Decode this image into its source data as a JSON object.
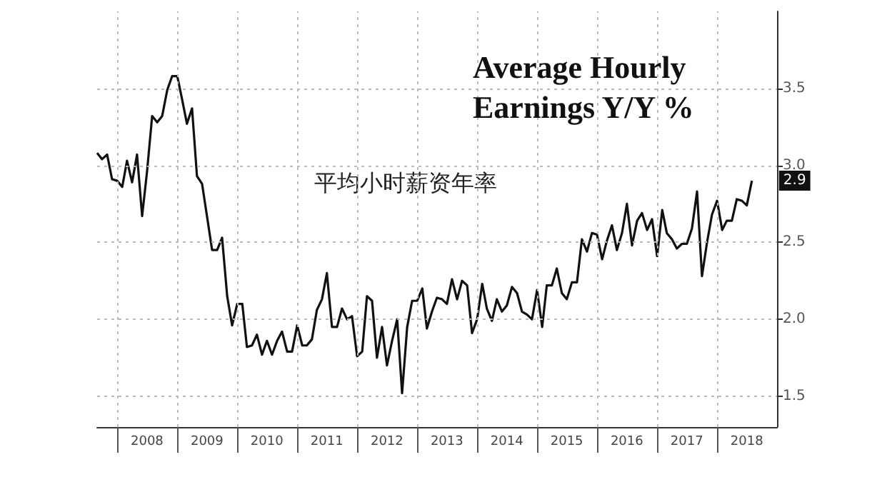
{
  "chart_data": {
    "type": "line",
    "title": "Average Hourly Earnings Y/Y %",
    "x": [
      "2007-09",
      "2007-10",
      "2007-11",
      "2007-12",
      "2008-01",
      "2008-02",
      "2008-03",
      "2008-04",
      "2008-05",
      "2008-06",
      "2008-07",
      "2008-08",
      "2008-09",
      "2008-10",
      "2008-11",
      "2008-12",
      "2009-01",
      "2009-02",
      "2009-03",
      "2009-04",
      "2009-05",
      "2009-06",
      "2009-07",
      "2009-08",
      "2009-09",
      "2009-10",
      "2009-11",
      "2009-12",
      "2010-01",
      "2010-02",
      "2010-03",
      "2010-04",
      "2010-05",
      "2010-06",
      "2010-07",
      "2010-08",
      "2010-09",
      "2010-10",
      "2010-11",
      "2010-12",
      "2011-01",
      "2011-02",
      "2011-03",
      "2011-04",
      "2011-05",
      "2011-06",
      "2011-07",
      "2011-08",
      "2011-09",
      "2011-10",
      "2011-11",
      "2011-12",
      "2012-01",
      "2012-02",
      "2012-03",
      "2012-04",
      "2012-05",
      "2012-06",
      "2012-07",
      "2012-08",
      "2012-09",
      "2012-10",
      "2012-11",
      "2012-12",
      "2013-01",
      "2013-02",
      "2013-03",
      "2013-04",
      "2013-05",
      "2013-06",
      "2013-07",
      "2013-08",
      "2013-09",
      "2013-10",
      "2013-11",
      "2013-12",
      "2014-01",
      "2014-02",
      "2014-03",
      "2014-04",
      "2014-05",
      "2014-06",
      "2014-07",
      "2014-08",
      "2014-09",
      "2014-10",
      "2014-11",
      "2014-12",
      "2015-01",
      "2015-02",
      "2015-03",
      "2015-04",
      "2015-05",
      "2015-06",
      "2015-07",
      "2015-08",
      "2015-09",
      "2015-10",
      "2015-11",
      "2015-12",
      "2016-01",
      "2016-02",
      "2016-03",
      "2016-04",
      "2016-05",
      "2016-06",
      "2016-07",
      "2016-08",
      "2016-09",
      "2016-10",
      "2016-11",
      "2016-12",
      "2017-01",
      "2017-02",
      "2017-03",
      "2017-04",
      "2017-05",
      "2017-06",
      "2017-07",
      "2017-08",
      "2017-09",
      "2017-10",
      "2017-11",
      "2017-12",
      "2018-01",
      "2018-02",
      "2018-03",
      "2018-04",
      "2018-05",
      "2018-06",
      "2018-07",
      "2018-08"
    ],
    "series": [
      {
        "color": "#111111",
        "values": [
          3.08,
          3.04,
          3.07,
          2.91,
          2.9,
          2.86,
          3.03,
          2.89,
          3.07,
          2.67,
          2.96,
          3.32,
          3.28,
          3.32,
          3.49,
          3.58,
          3.58,
          3.42,
          3.27,
          3.37,
          2.93,
          2.88,
          2.67,
          2.45,
          2.45,
          2.53,
          2.15,
          1.96,
          2.1,
          2.1,
          1.82,
          1.83,
          1.9,
          1.77,
          1.86,
          1.77,
          1.86,
          1.92,
          1.79,
          1.79,
          1.96,
          1.83,
          1.83,
          1.87,
          2.06,
          2.13,
          2.3,
          1.95,
          1.95,
          2.07,
          2.0,
          2.02,
          1.76,
          1.79,
          2.15,
          2.12,
          1.75,
          1.95,
          1.7,
          1.86,
          2.0,
          1.52,
          1.95,
          2.12,
          2.12,
          2.2,
          1.94,
          2.05,
          2.14,
          2.13,
          2.1,
          2.26,
          2.13,
          2.25,
          2.22,
          1.91,
          2.0,
          2.23,
          2.07,
          1.99,
          2.13,
          2.05,
          2.09,
          2.21,
          2.17,
          2.05,
          2.03,
          2.0,
          2.19,
          1.95,
          2.22,
          2.22,
          2.33,
          2.17,
          2.13,
          2.24,
          2.24,
          2.52,
          2.44,
          2.56,
          2.55,
          2.39,
          2.51,
          2.61,
          2.45,
          2.56,
          2.75,
          2.48,
          2.64,
          2.69,
          2.58,
          2.65,
          2.41,
          2.71,
          2.56,
          2.52,
          2.46,
          2.49,
          2.49,
          2.59,
          2.83,
          2.28,
          2.5,
          2.68,
          2.77,
          2.58,
          2.64,
          2.64,
          2.78,
          2.77,
          2.74,
          2.9
        ]
      }
    ],
    "xlim": [
      "2007-09",
      "2019-01"
    ],
    "xticks": [
      {
        "value": "2008",
        "label": null
      },
      {
        "value": "2008-07",
        "label": "2008"
      },
      {
        "value": "2009",
        "label": null
      },
      {
        "value": "2009-07",
        "label": "2009"
      },
      {
        "value": "2010",
        "label": null
      },
      {
        "value": "2010-07",
        "label": "2010"
      },
      {
        "value": "2011",
        "label": null
      },
      {
        "value": "2011-07",
        "label": "2011"
      },
      {
        "value": "2012",
        "label": null
      },
      {
        "value": "2012-07",
        "label": "2012"
      },
      {
        "value": "2013",
        "label": null
      },
      {
        "value": "2013-07",
        "label": "2013"
      },
      {
        "value": "2014",
        "label": null
      },
      {
        "value": "2014-07",
        "label": "2014"
      },
      {
        "value": "2015",
        "label": null
      },
      {
        "value": "2015-07",
        "label": "2015"
      },
      {
        "value": "2016",
        "label": null
      },
      {
        "value": "2016-07",
        "label": "2016"
      },
      {
        "value": "2017",
        "label": null
      },
      {
        "value": "2017-07",
        "label": "2017"
      },
      {
        "value": "2018",
        "label": null
      },
      {
        "value": "2018-07",
        "label": "2018"
      }
    ],
    "ylim": [
      1.3,
      4.0
    ],
    "yticks": [
      {
        "value": 1.5,
        "label": "1.5"
      },
      {
        "value": 2,
        "label": "2.0"
      },
      {
        "value": 2.5,
        "label": "2.5"
      },
      {
        "value": 3,
        "label": "3.0"
      },
      {
        "value": 3.5,
        "label": "3.5"
      }
    ],
    "grid": true,
    "marker": "none",
    "line_style": "solid",
    "annotations": [
      "平均小时薪资年率",
      {
        "text": "2.9",
        "x": "2018-08",
        "y": 2.9
      }
    ]
  }
}
